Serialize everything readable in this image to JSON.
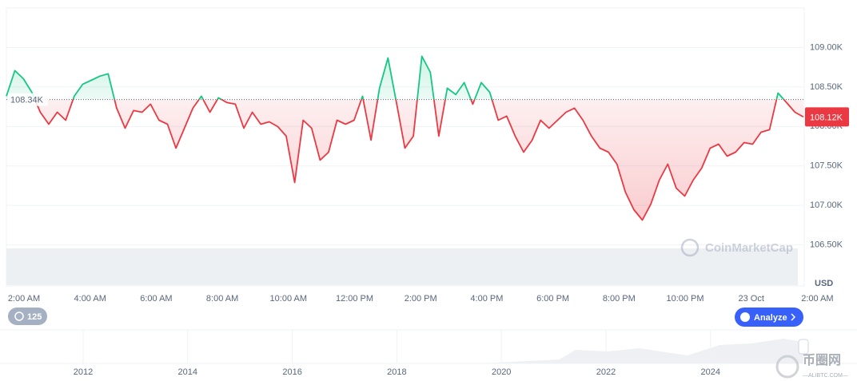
{
  "chart_data": {
    "type": "line",
    "values": [
      108383,
      108707,
      108605,
      108433,
      108180,
      108028,
      108180,
      108079,
      108383,
      108535,
      108585,
      108636,
      108666,
      108231,
      107978,
      108201,
      108180,
      108282,
      108079,
      108028,
      107725,
      107978,
      108231,
      108383,
      108180,
      108363,
      108302,
      108282,
      107978,
      108180,
      108028,
      108059,
      107998,
      107877,
      107290,
      108079,
      107978,
      107573,
      107674,
      108079,
      108028,
      108079,
      108383,
      107826,
      108484,
      108868,
      108302,
      107725,
      107877,
      108889,
      108686,
      107877,
      108484,
      108403,
      108555,
      108282,
      108555,
      108433,
      108079,
      108130,
      107877,
      107674,
      107826,
      108079,
      107978,
      108079,
      108180,
      108231,
      108079,
      107877,
      107725,
      107674,
      107522,
      107168,
      106946,
      106814,
      107016,
      107320,
      107522,
      107218,
      107118,
      107320,
      107472,
      107725,
      107775,
      107624,
      107674,
      107796,
      107775,
      107927,
      107958,
      108423,
      108302,
      108180,
      108120
    ],
    "baseline": {
      "value": 108340,
      "label": "108.34K"
    },
    "last_price": {
      "value": 108120,
      "label": "108.12K"
    },
    "ylim": [
      106000,
      109500
    ],
    "yticks": [
      {
        "value": 106500,
        "label": "106.50K"
      },
      {
        "value": 107000,
        "label": "107.00K"
      },
      {
        "value": 107500,
        "label": "107.50K"
      },
      {
        "value": 108000,
        "label": "108.00K"
      },
      {
        "value": 108500,
        "label": "108.50K"
      },
      {
        "value": 109000,
        "label": "109.00K"
      }
    ],
    "y_unit": "USD",
    "x_labels": [
      "2:00 AM",
      "4:00 AM",
      "6:00 AM",
      "8:00 AM",
      "10:00 AM",
      "12:00 PM",
      "2:00 PM",
      "4:00 PM",
      "6:00 PM",
      "8:00 PM",
      "10:00 PM",
      "23 Oct",
      "2:00 AM"
    ],
    "grid": true,
    "colors": {
      "up": "#16c784",
      "down": "#ea3943"
    },
    "watermark": "CoinMarketCap"
  },
  "navigator": {
    "years": [
      "2012",
      "2014",
      "2016",
      "2018",
      "2020",
      "2022",
      "2024"
    ]
  },
  "controls": {
    "history_badge": "125",
    "analyze_button": "Analyze"
  },
  "site_watermark": {
    "name": "币圈网",
    "url": "—ALIBTC.COM—"
  }
}
